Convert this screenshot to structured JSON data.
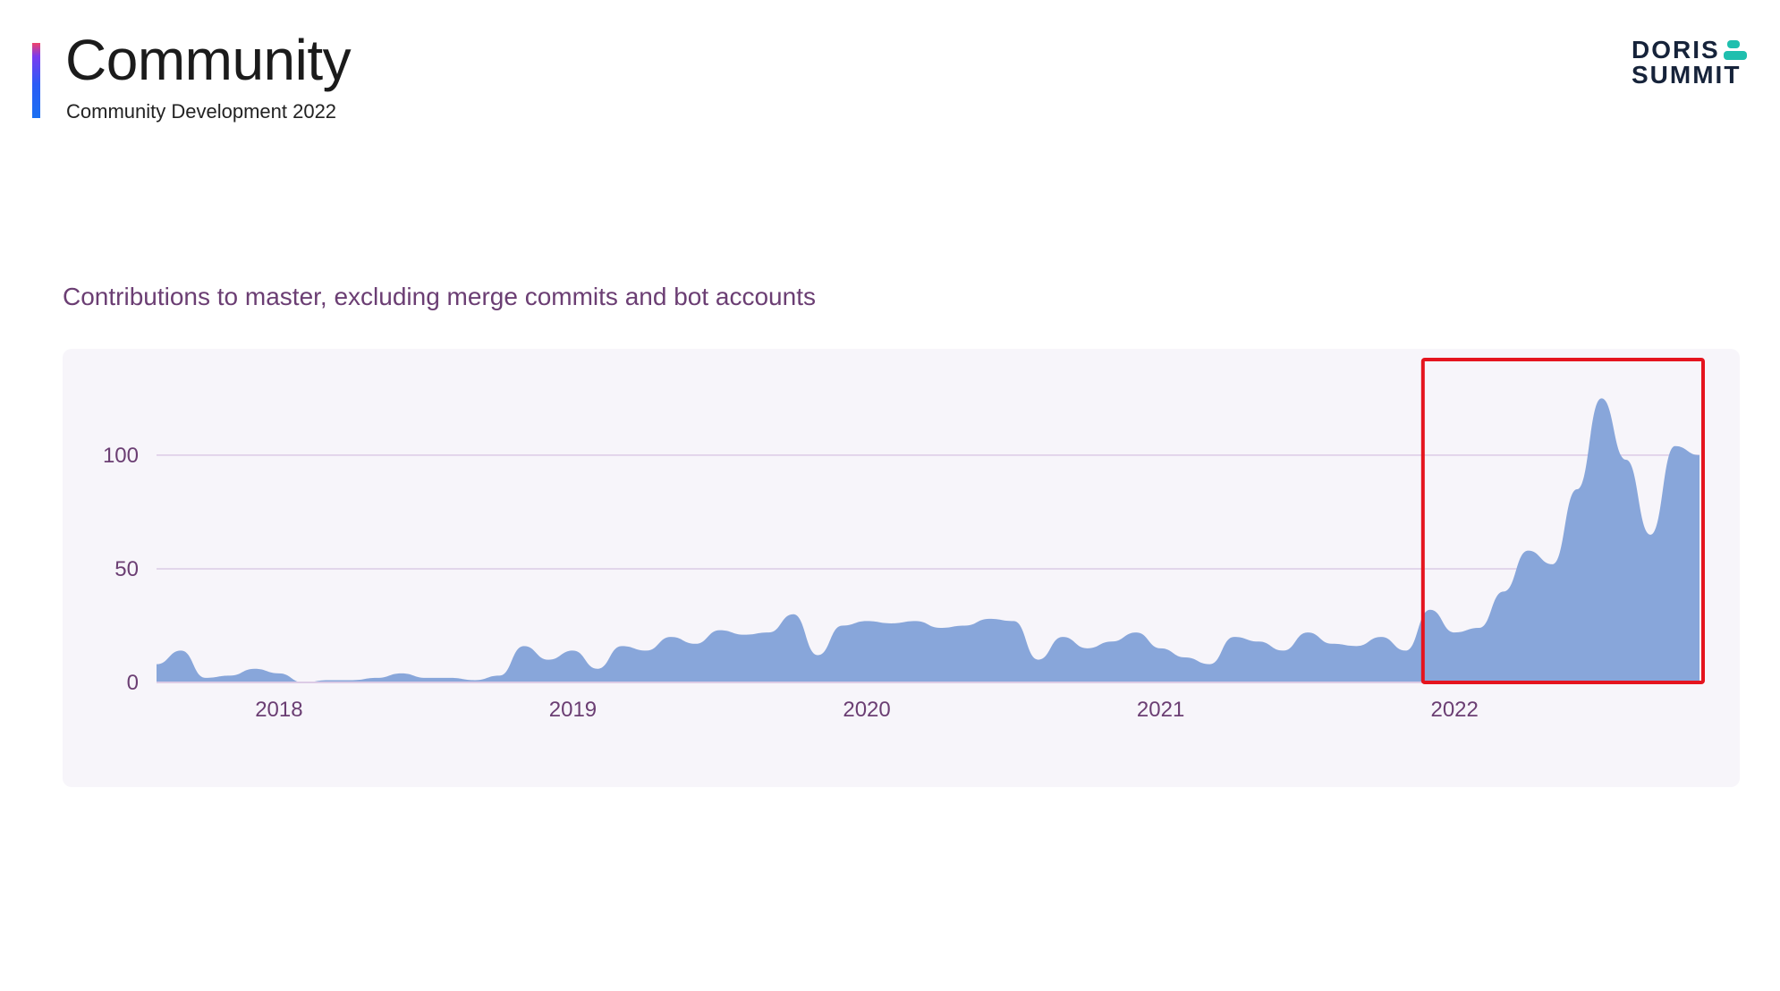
{
  "header": {
    "title": "Community",
    "subtitle": "Community Development 2022"
  },
  "logo": {
    "line1": "DORIS",
    "line2": "SUMMIT",
    "mark_color": "#1fbfae",
    "text_color": "#16233a"
  },
  "colors": {
    "area": "#88a6da",
    "gridline": "#dccbe6",
    "axis_text": "#6b3e73",
    "highlight": "#e5141e"
  },
  "chart_data": {
    "type": "area",
    "title": "Contributions to master, excluding merge commits and bot accounts",
    "xlabel": "",
    "ylabel": "",
    "x_ticks": [
      "2018",
      "2019",
      "2020",
      "2021",
      "2022"
    ],
    "y_ticks": [
      0,
      50,
      100
    ],
    "xlim": [
      "2017-08",
      "2022-11"
    ],
    "ylim": [
      0,
      135
    ],
    "grid": "horizontal",
    "legend": "none",
    "highlight_range": [
      "2021-12",
      "2022-11"
    ],
    "series": [
      {
        "x": [
          "2017-08",
          "2017-09",
          "2017-10",
          "2017-11",
          "2017-12",
          "2018-01",
          "2018-02",
          "2018-03",
          "2018-04",
          "2018-05",
          "2018-06",
          "2018-07",
          "2018-08",
          "2018-09",
          "2018-10",
          "2018-11",
          "2018-12",
          "2019-01",
          "2019-02",
          "2019-03",
          "2019-04",
          "2019-05",
          "2019-06",
          "2019-07",
          "2019-08",
          "2019-09",
          "2019-10",
          "2019-11",
          "2019-12",
          "2020-01",
          "2020-02",
          "2020-03",
          "2020-04",
          "2020-05",
          "2020-06",
          "2020-07",
          "2020-08",
          "2020-09",
          "2020-10",
          "2020-11",
          "2020-12",
          "2021-01",
          "2021-02",
          "2021-03",
          "2021-04",
          "2021-05",
          "2021-06",
          "2021-07",
          "2021-08",
          "2021-09",
          "2021-10",
          "2021-11",
          "2021-12",
          "2022-01",
          "2022-02",
          "2022-03",
          "2022-04",
          "2022-05",
          "2022-06",
          "2022-07",
          "2022-08",
          "2022-09",
          "2022-10",
          "2022-11"
        ],
        "values": [
          8,
          14,
          2,
          3,
          6,
          4,
          0,
          1,
          1,
          2,
          4,
          2,
          2,
          1,
          3,
          16,
          10,
          14,
          6,
          16,
          14,
          20,
          17,
          23,
          21,
          22,
          30,
          12,
          25,
          27,
          26,
          27,
          24,
          25,
          28,
          27,
          10,
          20,
          15,
          18,
          22,
          15,
          11,
          8,
          20,
          18,
          14,
          22,
          17,
          16,
          20,
          14,
          32,
          22,
          24,
          40,
          58,
          52,
          85,
          125,
          98,
          65,
          104,
          100
        ]
      }
    ]
  }
}
